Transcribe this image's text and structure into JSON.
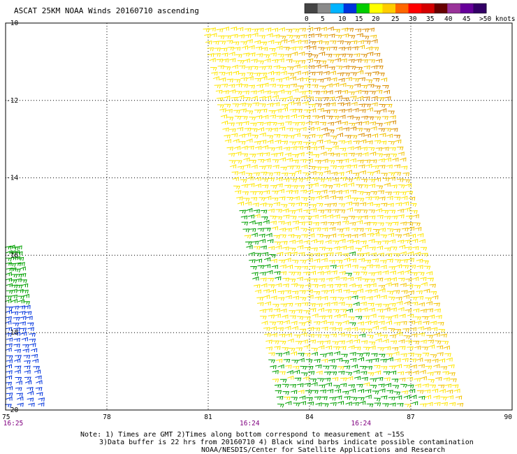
{
  "title": "ASCAT 25KM NOAA Winds 20160710 ascending",
  "legend": {
    "labels": [
      "0",
      "5",
      "10",
      "15",
      "20",
      "25",
      "30",
      "35",
      "40",
      "45",
      ">50 knots"
    ],
    "colors": [
      "#444444",
      "#8a8a8a",
      "#00b4ff",
      "#0033dd",
      "#00cc00",
      "#ffff00",
      "#ffcc00",
      "#ff6600",
      "#ff0000",
      "#d40000",
      "#660000",
      "#993399",
      "#660099",
      "#330066"
    ]
  },
  "x_axis": {
    "ticks": [
      75,
      78,
      81,
      84,
      87,
      90
    ],
    "tick_labels": [
      "75",
      "78",
      "81",
      "84",
      "87",
      "90"
    ],
    "range": [
      75,
      90
    ]
  },
  "y_axis": {
    "ticks": [
      -10,
      -12,
      -14,
      -16,
      -18,
      -20
    ],
    "tick_labels": [
      "-10",
      "-12",
      "-14",
      "-16",
      "-18",
      "-20"
    ],
    "range": [
      -20,
      -10
    ]
  },
  "pass_times": [
    {
      "label": "16:25",
      "lon": 75.2
    },
    {
      "label": "16:24",
      "lon": 82.2
    },
    {
      "label": "16:24",
      "lon": 85.5
    }
  ],
  "swaths": [
    {
      "name": "main",
      "top": [
        [
          80.8,
          -10
        ],
        [
          85.7,
          -10
        ]
      ],
      "bottom": [
        [
          83.1,
          -20
        ],
        [
          88.4,
          -20
        ]
      ]
    },
    {
      "name": "west-edge",
      "top": [
        [
          75.0,
          -15.8
        ],
        [
          75.3,
          -15.8
        ]
      ],
      "bottom": [
        [
          75.0,
          -20
        ],
        [
          76.0,
          -20
        ]
      ]
    }
  ],
  "barb_colors": {
    "knots_20_25": "#ffe600",
    "knots_25_30": "#f2c200",
    "knots_30_35": "#d98c00",
    "knots_15_20": "#00a000",
    "knots_10_15": "#0033dd"
  },
  "notes": {
    "line1": "Note: 1) Times are GMT 2)Times along bottom correspond to measurement at ~15S",
    "line2": "3)Data buffer is 22 hrs from 20160710 4) Black wind barbs indicate possible contamination",
    "line3": "NOAA/NESDIS/Center for Satellite Applications and Research"
  },
  "colors": {
    "time_label": "#800080",
    "grid": "#000000",
    "frame": "#000000"
  }
}
